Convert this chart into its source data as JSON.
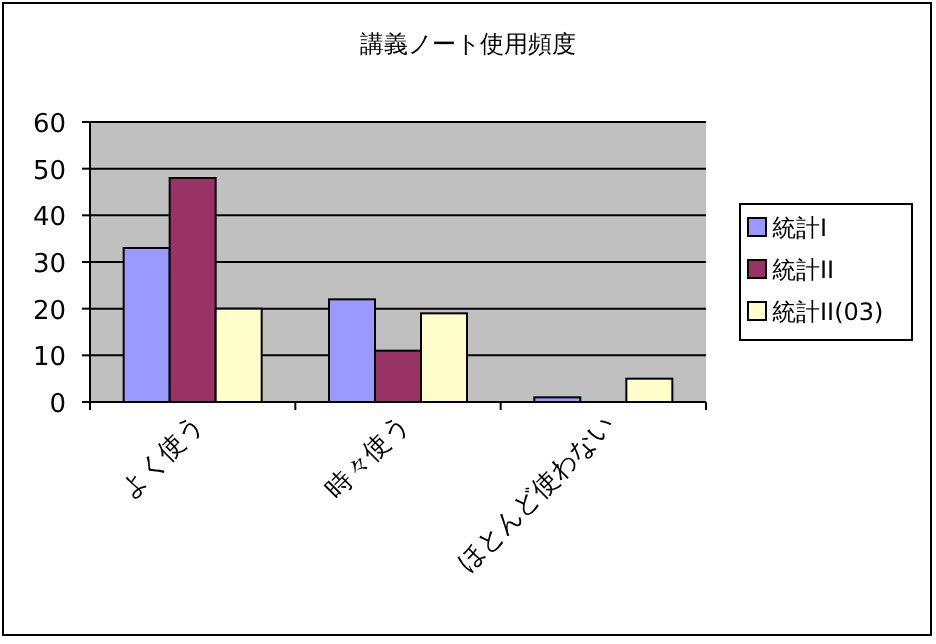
{
  "chart_data": {
    "type": "bar",
    "title": "講義ノート使用頻度",
    "categories": [
      "よく使う",
      "時々使う",
      "ほとんど使わない"
    ],
    "series": [
      {
        "name": "統計I",
        "color": "#9999ff",
        "values": [
          33,
          22,
          1
        ]
      },
      {
        "name": "統計II",
        "color": "#993366",
        "values": [
          48,
          11,
          0
        ]
      },
      {
        "name": "統計II(03)",
        "color": "#ffffcc",
        "values": [
          20,
          19,
          5
        ]
      }
    ],
    "ylim": [
      0,
      60
    ],
    "yticks": [
      0,
      10,
      20,
      30,
      40,
      50,
      60
    ],
    "grid": "y",
    "legend": "right"
  }
}
